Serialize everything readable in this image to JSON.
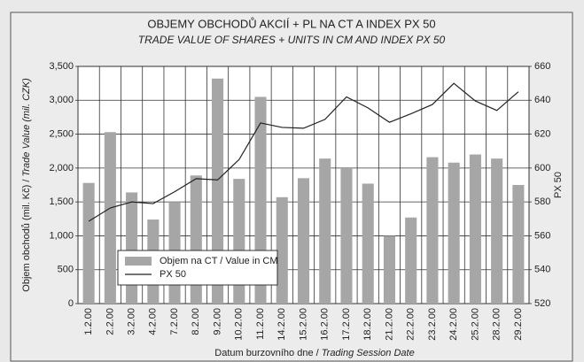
{
  "chart_data": {
    "type": "bar_line",
    "title": "OBJEMY OBCHODŮ AKCIÍ + PL NA CT A INDEX PX 50",
    "subtitle": "TRADE VALUE OF SHARES + UNITS IN CM AND INDEX PX 50",
    "x_label_cz": "Datum burzovního dne / ",
    "x_label_en": "Trading Session Date",
    "y_label_cz": "Objem obchodů (mil. Kč) / ",
    "y_label_en": "Trade Value (mil. CZK)",
    "y2_label": "PX 50",
    "categories": [
      "1.2.00",
      "2.2.00",
      "3.2.00",
      "4.2.00",
      "7.2.00",
      "8.2.00",
      "9.2.00",
      "10.2.00",
      "11.2.00",
      "14.2.00",
      "15.2.00",
      "16.2.00",
      "17.2.00",
      "18.2.00",
      "21.2.00",
      "22.2.00",
      "23.2.00",
      "24.2.00",
      "25.2.00",
      "28.2.00",
      "29.2.00"
    ],
    "series": [
      {
        "name": "Objem na CT / Value in CM",
        "color": "#a6a6a6",
        "axis": "y",
        "values": [
          1780,
          2530,
          1640,
          1240,
          1500,
          1890,
          3320,
          1840,
          3050,
          1570,
          1850,
          2140,
          1990,
          1770,
          1000,
          1270,
          2160,
          2080,
          2200,
          2140,
          1750
        ]
      },
      {
        "name": "PX 50",
        "color": "#222222",
        "axis": "y2",
        "values": [
          568.6,
          576.4,
          580,
          579,
          586,
          593.7,
          593,
          605,
          626.6,
          624,
          623.5,
          628.7,
          642,
          635.5,
          627,
          632,
          637.5,
          650,
          639.6,
          634,
          645
        ]
      }
    ],
    "ylim": [
      0,
      3500
    ],
    "yticks": [
      0,
      500,
      {
        "value": 1000,
        "label": "1,000"
      },
      {
        "value": 1500,
        "label": "1,500"
      },
      {
        "value": 2000,
        "label": "2,000"
      },
      {
        "value": 2500,
        "label": "2,500"
      },
      {
        "value": 3000,
        "label": "3,000"
      },
      {
        "value": 3500,
        "label": "3,500"
      }
    ],
    "y2lim": [
      520,
      660
    ],
    "y2ticks": [
      520,
      540,
      560,
      580,
      600,
      620,
      640,
      660
    ],
    "grid": true,
    "legend": "lower left"
  }
}
